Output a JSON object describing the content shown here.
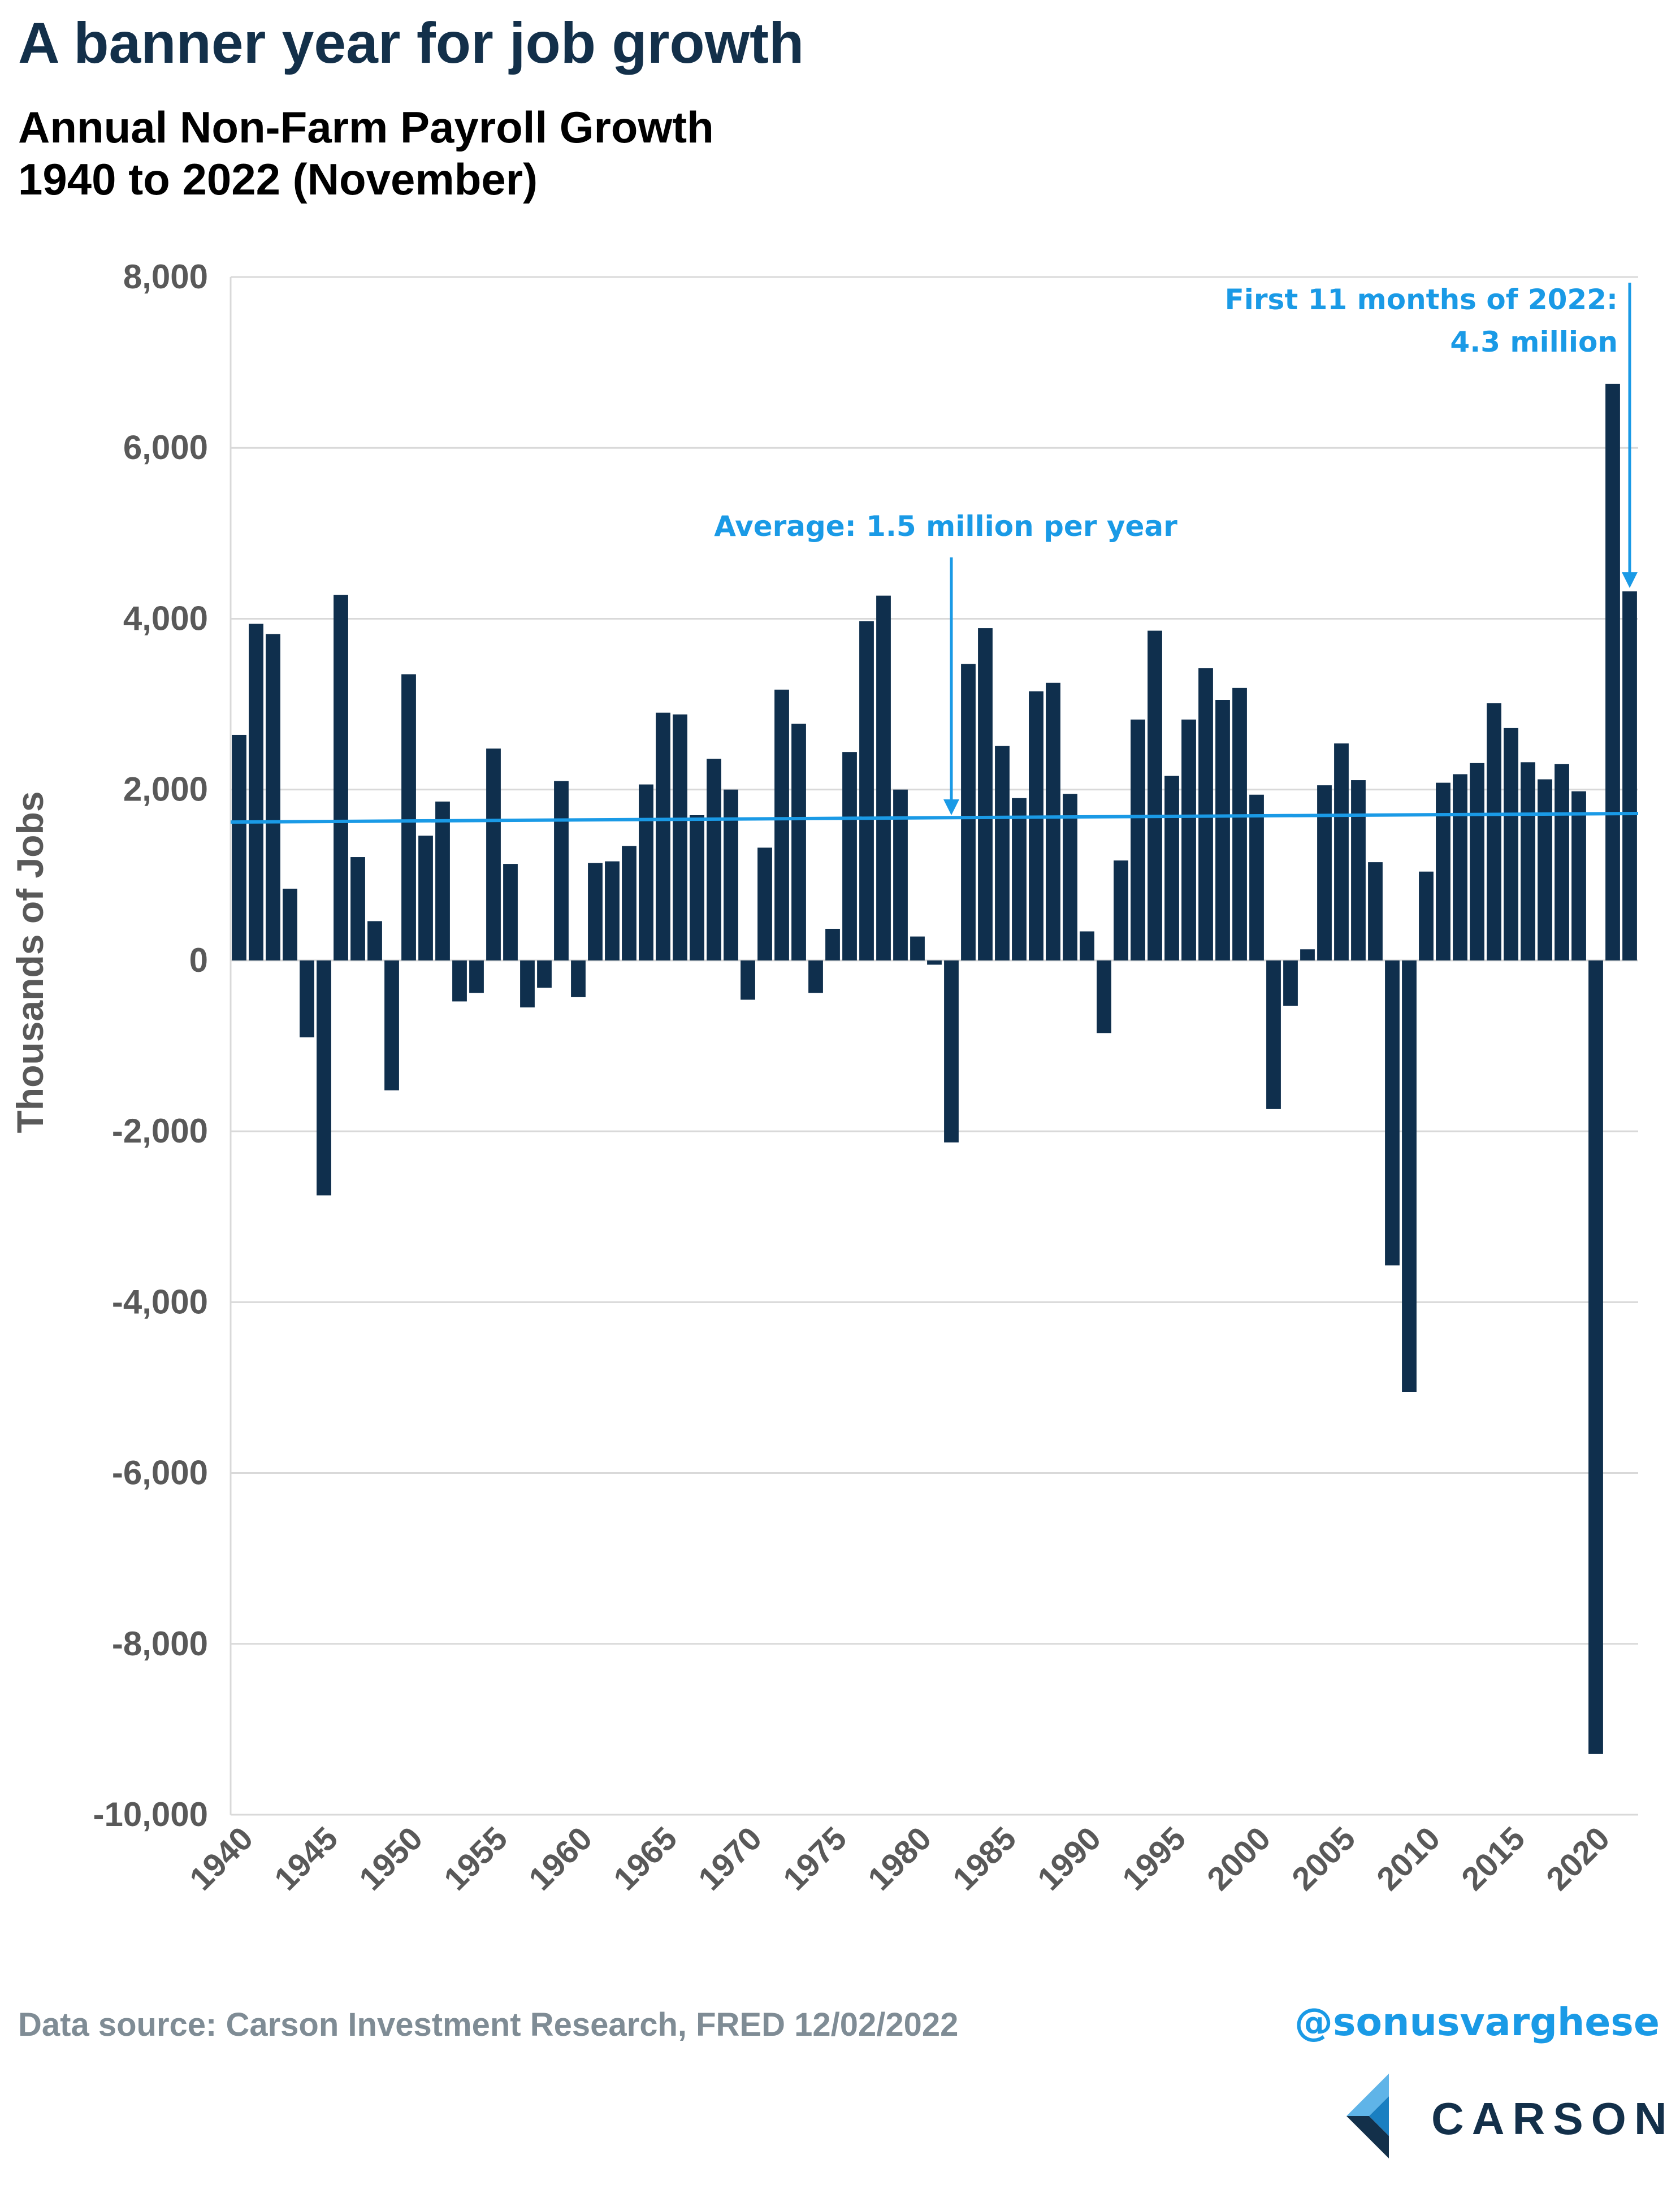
{
  "header": {
    "title": "A banner year for job growth",
    "subtitle_line1": "Annual Non-Farm Payroll Growth",
    "subtitle_line2": "1940 to 2022 (November)"
  },
  "footer": {
    "source": "Data source: Carson Investment Research, FRED   12/02/2022",
    "handle": "@sonusvarghese",
    "logo_text": "CARSON"
  },
  "colors": {
    "bar": "#0f2f4d",
    "accent": "#1a9ae6",
    "grid": "#d9d9d9",
    "axis_text": "#595959"
  },
  "chart_data": {
    "type": "bar",
    "title": "A banner year for job growth",
    "subtitle": "Annual Non-Farm Payroll Growth 1940 to 2022 (November)",
    "xlabel": "",
    "ylabel": "Thousands of Jobs",
    "ylim": [
      -10000,
      8000
    ],
    "yticks": [
      8000,
      6000,
      4000,
      2000,
      0,
      -2000,
      -4000,
      -6000,
      -8000,
      -10000
    ],
    "ytick_labels": [
      "8,000",
      "6,000",
      "4,000",
      "2,000",
      "0",
      "-2,000",
      "-4,000",
      "-6,000",
      "-8,000",
      "-10,000"
    ],
    "xtick_labels": [
      "1940",
      "1945",
      "1950",
      "1955",
      "1960",
      "1965",
      "1970",
      "1975",
      "1980",
      "1985",
      "1990",
      "1995",
      "2000",
      "2005",
      "2010",
      "2015",
      "2020"
    ],
    "grid": true,
    "categories": [
      "1940",
      "1941",
      "1942",
      "1943",
      "1944",
      "1945",
      "1946",
      "1947",
      "1948",
      "1949",
      "1950",
      "1951",
      "1952",
      "1953",
      "1954",
      "1955",
      "1956",
      "1957",
      "1958",
      "1959",
      "1960",
      "1961",
      "1962",
      "1963",
      "1964",
      "1965",
      "1966",
      "1967",
      "1968",
      "1969",
      "1970",
      "1971",
      "1972",
      "1973",
      "1974",
      "1975",
      "1976",
      "1977",
      "1978",
      "1979",
      "1980",
      "1981",
      "1982",
      "1983",
      "1984",
      "1985",
      "1986",
      "1987",
      "1988",
      "1989",
      "1990",
      "1991",
      "1992",
      "1993",
      "1994",
      "1995",
      "1996",
      "1997",
      "1998",
      "1999",
      "2000",
      "2001",
      "2002",
      "2003",
      "2004",
      "2005",
      "2006",
      "2007",
      "2008",
      "2009",
      "2010",
      "2011",
      "2012",
      "2013",
      "2014",
      "2015",
      "2016",
      "2017",
      "2018",
      "2019",
      "2020",
      "2021",
      "2022"
    ],
    "values": [
      2640,
      3940,
      3820,
      840,
      -900,
      -2750,
      4280,
      1210,
      460,
      -1520,
      3350,
      1460,
      1860,
      -480,
      -380,
      2480,
      1130,
      -550,
      -320,
      2100,
      -430,
      1140,
      1160,
      1340,
      2060,
      2900,
      2880,
      1700,
      2360,
      2000,
      -460,
      1320,
      3170,
      2770,
      -380,
      370,
      2440,
      3970,
      4270,
      2000,
      280,
      -50,
      -2130,
      3470,
      3890,
      2510,
      1900,
      3150,
      3250,
      1950,
      340,
      -850,
      1170,
      2820,
      3860,
      2160,
      2820,
      3420,
      3050,
      3190,
      1940,
      -1740,
      -530,
      130,
      2050,
      2540,
      2110,
      1150,
      -3570,
      -5050,
      1040,
      2080,
      2180,
      2310,
      3010,
      2720,
      2320,
      2120,
      2300,
      1980,
      -9290,
      6750,
      4320
    ],
    "average_line": {
      "start": 1620,
      "end": 1720
    },
    "annotations": [
      {
        "text": "Average: 1.5 million per year"
      },
      {
        "text_line1": "First 11 months of 2022:",
        "text_line2": "4.3 million"
      }
    ]
  }
}
